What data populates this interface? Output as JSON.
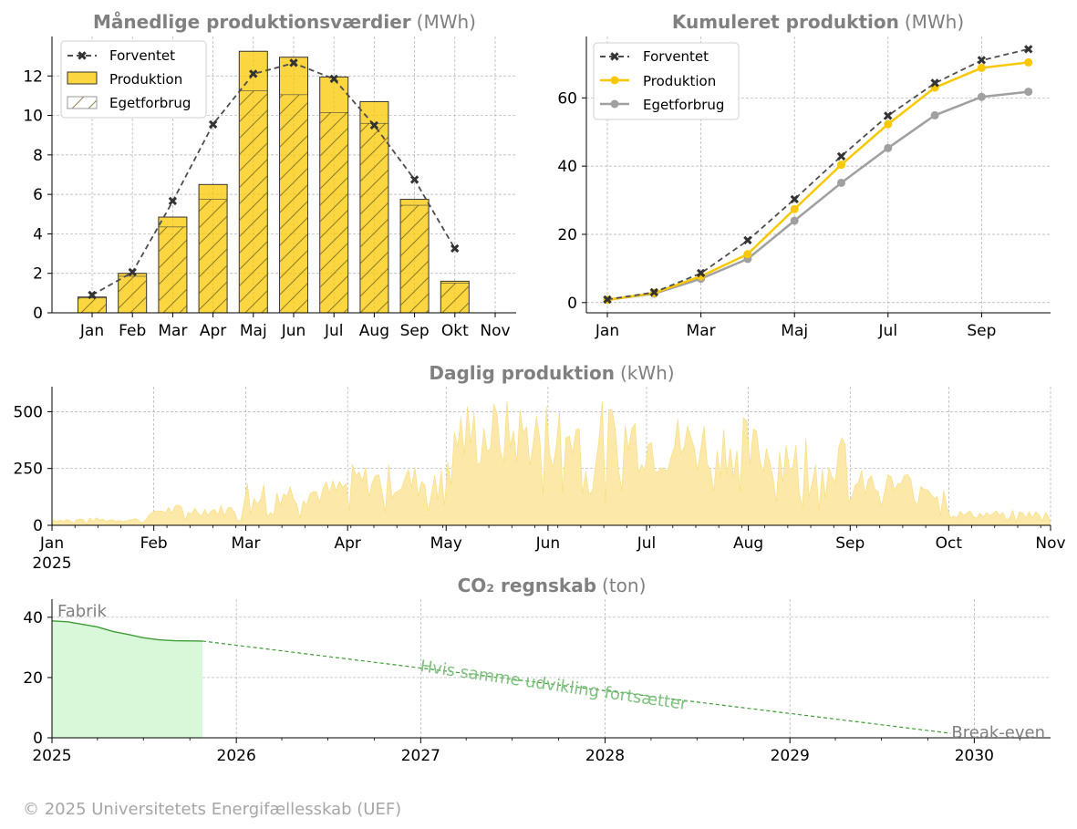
{
  "footer": "© 2025 Universitetets Energifællesskab (UEF)",
  "colors": {
    "production": "#fac800",
    "self_use": "#a0a0a0",
    "expected": "#4d4d4d",
    "daily_fill": "#fce8a8",
    "co2_line": "#3d9e35",
    "co2_fill": "#d9f7d9",
    "co2_text": "#80c080",
    "grid": "#b0b0b0",
    "title_gray": "#808080"
  },
  "chart_data": [
    {
      "id": "monthly",
      "type": "bar",
      "title": "Månedlige produktionsværdier",
      "unit": "(MWh)",
      "categories": [
        "Jan",
        "Feb",
        "Mar",
        "Apr",
        "Maj",
        "Jun",
        "Jul",
        "Aug",
        "Sep",
        "Okt",
        "Nov"
      ],
      "ylim": [
        0,
        14
      ],
      "yticks": [
        0,
        2,
        4,
        6,
        8,
        10,
        12
      ],
      "grid": true,
      "legend": {
        "position": "top-left",
        "entries": [
          "Forventet",
          "Produktion",
          "Egetforbrug"
        ]
      },
      "series": [
        {
          "name": "Produktion",
          "values": [
            0.8,
            2.0,
            4.85,
            6.5,
            13.25,
            12.95,
            11.95,
            10.7,
            5.75,
            1.6,
            null
          ]
        },
        {
          "name": "Egetforbrug",
          "values": [
            0.75,
            1.85,
            4.35,
            5.75,
            11.25,
            11.05,
            10.15,
            9.6,
            5.45,
            1.5,
            null
          ]
        },
        {
          "name": "Forventet",
          "values": [
            0.9,
            2.05,
            5.65,
            9.55,
            12.1,
            12.65,
            11.85,
            9.5,
            6.75,
            3.25,
            null
          ]
        }
      ]
    },
    {
      "id": "cumulative",
      "type": "line",
      "title": "Kumuleret produktion",
      "unit": "(MWh)",
      "x": [
        "Jan",
        "Feb",
        "Mar",
        "Apr",
        "Maj",
        "Jun",
        "Jul",
        "Aug",
        "Sep",
        "Okt"
      ],
      "xtick_labels": [
        "Jan",
        "Mar",
        "Maj",
        "Jul",
        "Sep"
      ],
      "ylim": [
        -3,
        78
      ],
      "yticks": [
        0,
        20,
        40,
        60
      ],
      "grid": true,
      "legend": {
        "position": "top-left",
        "entries": [
          "Forventet",
          "Produktion",
          "Egetforbrug"
        ]
      },
      "series": [
        {
          "name": "Forventet",
          "values": [
            0.9,
            3.0,
            8.6,
            18.2,
            30.3,
            42.9,
            54.8,
            64.3,
            71.0,
            74.3
          ]
        },
        {
          "name": "Produktion",
          "values": [
            0.8,
            2.8,
            7.7,
            14.2,
            27.4,
            40.4,
            52.3,
            63.0,
            68.8,
            70.4
          ]
        },
        {
          "name": "Egetforbrug",
          "values": [
            0.8,
            2.6,
            7.0,
            12.8,
            24.0,
            35.1,
            45.3,
            54.9,
            60.3,
            61.8
          ]
        }
      ]
    },
    {
      "id": "daily",
      "type": "area",
      "title": "Daglig produktion",
      "unit": "(kWh)",
      "x_start": "2025-01-01",
      "x_end": "2025-11-01",
      "xtick_labels": [
        "Jan\n2025",
        "Feb",
        "Mar",
        "Apr",
        "May",
        "Jun",
        "Jul",
        "Aug",
        "Sep",
        "Oct",
        "Nov"
      ],
      "ylim": [
        0,
        610
      ],
      "yticks": [
        0,
        250,
        500
      ],
      "grid": true,
      "monthly_levels_kWh": [
        26,
        71,
        156,
        210,
        430,
        430,
        385,
        345,
        190,
        52
      ]
    },
    {
      "id": "co2",
      "type": "line",
      "title": "CO₂ regnskab",
      "unit": "(ton)",
      "x_range": [
        "2025-01-01",
        "2030-06-01"
      ],
      "xtick_labels": [
        "2025",
        "2026",
        "2027",
        "2028",
        "2029",
        "2030"
      ],
      "ylim": [
        0,
        46
      ],
      "yticks": [
        0,
        20,
        40
      ],
      "grid": true,
      "actual": [
        {
          "x": "2025-01-01",
          "y": 38.8
        },
        {
          "x": "2025-02-01",
          "y": 38.5
        },
        {
          "x": "2025-03-01",
          "y": 37.7
        },
        {
          "x": "2025-04-01",
          "y": 36.8
        },
        {
          "x": "2025-05-01",
          "y": 35.3
        },
        {
          "x": "2025-06-01",
          "y": 34.3
        },
        {
          "x": "2025-07-01",
          "y": 33.2
        },
        {
          "x": "2025-08-01",
          "y": 32.5
        },
        {
          "x": "2025-09-01",
          "y": 32.2
        },
        {
          "x": "2025-10-26",
          "y": 32.1
        }
      ],
      "projection": [
        {
          "x": "2025-10-26",
          "y": 32.1
        },
        {
          "x": "2029-11-15",
          "y": 1.5
        }
      ],
      "annotations": {
        "start": "Fabrik",
        "trend": "Hvis samme udvikling fortsætter",
        "end": "Break-even"
      }
    }
  ]
}
